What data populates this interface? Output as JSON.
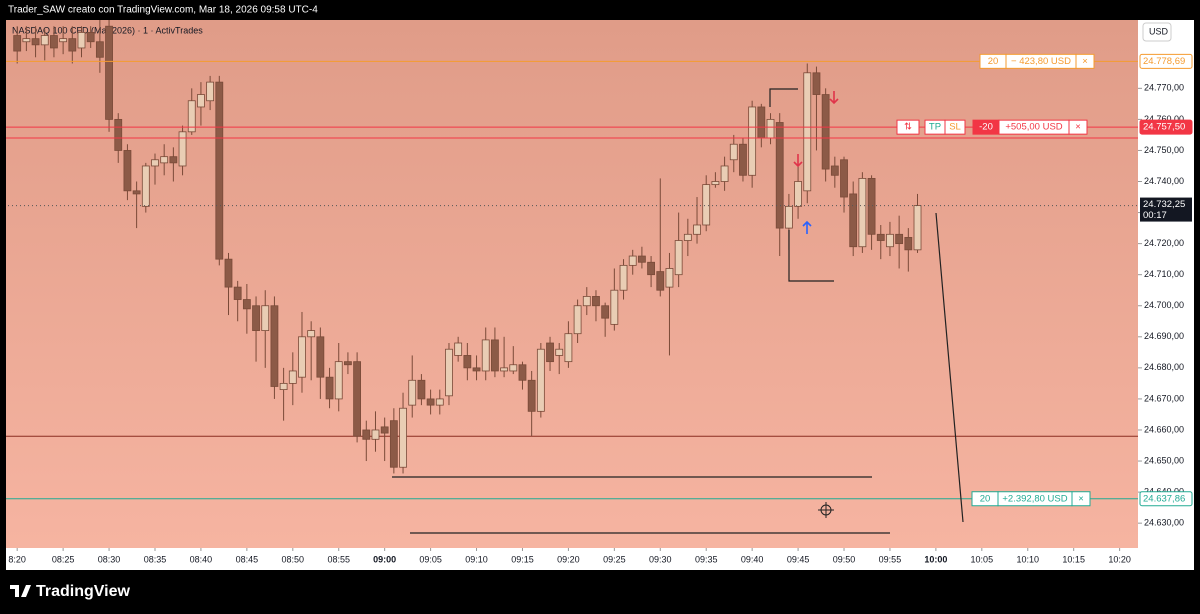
{
  "header": {
    "credit": "Trader_SAW creato con TradingView.com, Mar 18, 2026 09:58 UTC-4",
    "symbol": "NASDAQ 100 CFD (Mar 2026) · 1 · ActivTrades",
    "currency": "USD"
  },
  "footer": {
    "brand": "TradingView"
  },
  "chart_data": {
    "type": "candlestick",
    "x": [
      "08:20",
      "08:21",
      "08:22",
      "08:23",
      "08:24",
      "08:25",
      "08:26",
      "08:27",
      "08:28",
      "08:29",
      "08:30",
      "08:31",
      "08:32",
      "08:33",
      "08:34",
      "08:35",
      "08:36",
      "08:37",
      "08:38",
      "08:39",
      "08:40",
      "08:41",
      "08:42",
      "08:43",
      "08:44",
      "08:45",
      "08:46",
      "08:47",
      "08:48",
      "08:49",
      "08:50",
      "08:51",
      "08:52",
      "08:53",
      "08:54",
      "08:55",
      "08:56",
      "08:57",
      "08:58",
      "08:59",
      "09:00",
      "09:01",
      "09:02",
      "09:03",
      "09:04",
      "09:05",
      "09:06",
      "09:07",
      "09:08",
      "09:09",
      "09:10",
      "09:11",
      "09:12",
      "09:13",
      "09:14",
      "09:15",
      "09:16",
      "09:17",
      "09:18",
      "09:19",
      "09:20",
      "09:21",
      "09:22",
      "09:23",
      "09:24",
      "09:25",
      "09:26",
      "09:27",
      "09:28",
      "09:29",
      "09:30",
      "09:31",
      "09:32",
      "09:33",
      "09:34",
      "09:35",
      "09:36",
      "09:37",
      "09:38",
      "09:39",
      "09:40",
      "09:41",
      "09:42",
      "09:43",
      "09:44",
      "09:45",
      "09:46",
      "09:47",
      "09:48",
      "09:49",
      "09:50",
      "09:51",
      "09:52",
      "09:53",
      "09:54",
      "09:55",
      "09:56",
      "09:57",
      "09:58"
    ],
    "open": [
      24787,
      24785,
      24786,
      24784,
      24787,
      24785,
      24786,
      24783,
      24788,
      24785,
      24790,
      24760,
      24750,
      24737,
      24732,
      24745,
      24746,
      24748,
      24745,
      24756,
      24764,
      24766,
      24772,
      24715,
      24706,
      24702,
      24700,
      24692,
      24700,
      24673,
      24675,
      24677,
      24690,
      24690,
      24677,
      24670,
      24682,
      24682,
      24660,
      24657,
      24661,
      24663,
      24648,
      24668,
      24676,
      24670,
      24668,
      24671,
      24684,
      24684,
      24680,
      24679,
      24689,
      24679,
      24679,
      24681,
      24676,
      24666,
      24688,
      24684,
      24682,
      24691,
      24700,
      24703,
      24700,
      24694,
      24705,
      24713,
      24716,
      24714,
      24711,
      24706,
      24710,
      24721,
      24723,
      24726,
      24739,
      24740,
      24747,
      24752,
      24742,
      24764,
      24754,
      24759,
      24725,
      24732,
      24737,
      24775,
      24768,
      24745,
      24747,
      24736,
      24719,
      24741,
      24723,
      24719,
      24723,
      24722,
      24718
    ],
    "high": [
      24790,
      24790,
      24790,
      24789,
      24790,
      24790,
      24790,
      24790,
      24790,
      24792,
      24792,
      24762,
      24752,
      24740,
      24746,
      24749,
      24752,
      24751,
      24758,
      24770,
      24772,
      24774,
      24774,
      24717,
      24708,
      24707,
      24703,
      24705,
      24703,
      24680,
      24685,
      24698,
      24695,
      24693,
      24680,
      24688,
      24685,
      24685,
      24663,
      24666,
      24664,
      24667,
      24672,
      24684,
      24678,
      24673,
      24673,
      24688,
      24690,
      24688,
      24684,
      24693,
      24693,
      24690,
      24687,
      24682,
      24679,
      24688,
      24690,
      24688,
      24695,
      24702,
      24706,
      24705,
      24701,
      24712,
      24715,
      24718,
      24719,
      24716,
      24741,
      24717,
      24730,
      24728,
      24735,
      24742,
      24743,
      24748,
      24755,
      24754,
      24766,
      24765,
      24762,
      24762,
      24736,
      24745,
      24778,
      24777,
      24770,
      24748,
      24748,
      24740,
      24743,
      24742,
      24726,
      24727,
      24729,
      24725,
      24736
    ],
    "low": [
      24778,
      24782,
      24780,
      24779,
      24780,
      24781,
      24778,
      24780,
      24783,
      24775,
      24756,
      24746,
      24734,
      24725,
      24730,
      24739,
      24742,
      24740,
      24742,
      24755,
      24758,
      24763,
      24713,
      24697,
      24695,
      24691,
      24682,
      24680,
      24670,
      24663,
      24668,
      24672,
      24676,
      24670,
      24667,
      24666,
      24678,
      24656,
      24650,
      24653,
      24650,
      24646,
      24646,
      24664,
      24668,
      24665,
      24665,
      24668,
      24682,
      24676,
      24676,
      24676,
      24677,
      24677,
      24678,
      24673,
      24658,
      24664,
      24679,
      24678,
      24680,
      24688,
      24697,
      24695,
      24690,
      24692,
      24702,
      24710,
      24712,
      24706,
      24703,
      24684,
      24706,
      24716,
      24720,
      24724,
      24738,
      24737,
      24743,
      24740,
      24738,
      24751,
      24752,
      24716,
      24718,
      24728,
      24733,
      24750,
      24740,
      24738,
      24730,
      24716,
      24717,
      24718,
      24715,
      24716,
      24712,
      24711,
      24717
    ],
    "close": [
      24782,
      24786,
      24784,
      24787,
      24783,
      24786,
      24782,
      24788,
      24785,
      24780,
      24760,
      24750,
      24737,
      24736,
      24745,
      24747,
      24748,
      24746,
      24756,
      24766,
      24768,
      24772,
      24715,
      24706,
      24702,
      24699,
      24692,
      24700,
      24674,
      24675,
      24679,
      24690,
      24692,
      24677,
      24670,
      24682,
      24681,
      24658,
      24657,
      24660,
      24659,
      24648,
      24667,
      24676,
      24670,
      24668,
      24670,
      24686,
      24688,
      24680,
      24679,
      24689,
      24679,
      24680,
      24681,
      24676,
      24666,
      24686,
      24682,
      24686,
      24691,
      24700,
      24703,
      24700,
      24696,
      24705,
      24713,
      24716,
      24714,
      24710,
      24705,
      24712,
      24721,
      24723,
      24726,
      24739,
      24740,
      24745,
      24752,
      24742,
      24764,
      24754,
      24760,
      24725,
      24732,
      24740,
      24775,
      24768,
      24744,
      24742,
      24735,
      24719,
      24741,
      24723,
      24721,
      24723,
      24720,
      24718,
      24732.25
    ],
    "xlim": [
      "08:19",
      "10:22"
    ],
    "ylim": [
      24622,
      24792
    ],
    "yticks": [
      {
        "value": 24630,
        "label": "24.630,00"
      },
      {
        "value": 24640,
        "label": "24.640,00"
      },
      {
        "value": 24650,
        "label": "24.650,00"
      },
      {
        "value": 24660,
        "label": "24.660,00"
      },
      {
        "value": 24670,
        "label": "24.670,00"
      },
      {
        "value": 24680,
        "label": "24.680,00"
      },
      {
        "value": 24690,
        "label": "24.690,00"
      },
      {
        "value": 24700,
        "label": "24.700,00"
      },
      {
        "value": 24710,
        "label": "24.710,00"
      },
      {
        "value": 24720,
        "label": "24.720,00"
      },
      {
        "value": 24730,
        "label": "24.730,00"
      },
      {
        "value": 24740,
        "label": "24.740,00"
      },
      {
        "value": 24750,
        "label": "24.750,00"
      },
      {
        "value": 24760,
        "label": "24.760,00"
      },
      {
        "value": 24770,
        "label": "24.770,00"
      }
    ],
    "xticks": [
      {
        "value": "08:20",
        "label": "8:20"
      },
      "08:25",
      "08:30",
      "08:35",
      "08:40",
      "08:45",
      "08:50",
      "08:55",
      "09:00",
      "09:05",
      "09:10",
      "09:15",
      "09:20",
      "09:25",
      "09:30",
      "09:35",
      "09:40",
      "09:45",
      "09:50",
      "09:55",
      "10:00",
      "10:05",
      "10:10",
      "10:15",
      "10:20"
    ],
    "up_color": "#e9cdb4",
    "down_color": "#8c5a47",
    "support_line": 24658,
    "current_price": {
      "value": 24732.25,
      "label": "24.732,25"
    },
    "countdown": "00:17",
    "orders": [
      {
        "price": {
          "value": 24778.69,
          "label": "24.778,69"
        },
        "qty": "20",
        "pnl": "− 423,80 USD",
        "close": "×",
        "color": "#f59b2f"
      },
      {
        "price": {
          "value": 24757.5,
          "label": "24.757,50"
        },
        "entry": 24754,
        "icon": "⇅",
        "tp": "TP",
        "sl": "SL",
        "qty": "-20",
        "pnl": "+505,00 USD",
        "close": "×",
        "color": "#f23645"
      },
      {
        "price": {
          "value": 24637.86,
          "label": "24.637,86"
        },
        "qty": "20",
        "pnl": "+2.392,80 USD",
        "close": "×",
        "color": "#22ab94"
      }
    ]
  }
}
